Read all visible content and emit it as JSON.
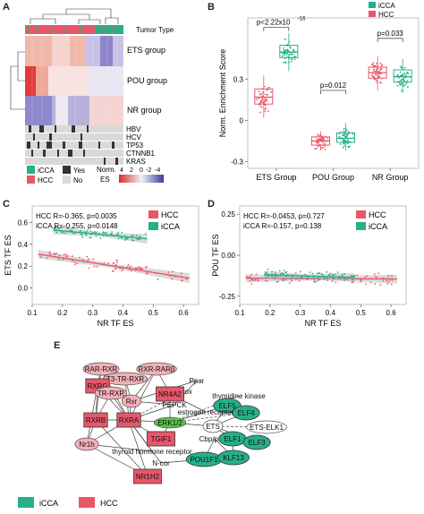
{
  "panels": {
    "a": "A",
    "b": "B",
    "c": "C",
    "d": "D",
    "e": "E"
  },
  "heatmap": {
    "row_labels": [
      "Tumor Type",
      "ETS group",
      "POU group",
      "NR group"
    ],
    "annot_labels": [
      "HBV",
      "HCV",
      "TP53",
      "CTNNB1",
      "KRAS"
    ],
    "legend_types": [
      "iCCA",
      "HCC"
    ],
    "legend_yesno": [
      "Yes",
      "No"
    ],
    "norm_label": "Norm.",
    "es_label": "ES",
    "norm_ticks": [
      "4",
      "2",
      "0",
      "-2",
      "-4"
    ],
    "colors": {
      "iCCA": "#26b08a",
      "HCC": "#e8566a",
      "high": "#d62b2b",
      "mid": "#f2f2f2",
      "low": "#3a3aa0",
      "yes": "#333333",
      "no": "#d9d9d9"
    }
  },
  "chart_data": [
    {
      "type": "box",
      "ylabel": "Norm. Enrichment Score",
      "categories": [
        "ETS Group",
        "POU Group",
        "NR Group"
      ],
      "ylim": [
        -0.35,
        0.75
      ],
      "yticks": [
        "0.3",
        "0",
        "-0.3"
      ],
      "legend": [
        "iCCA",
        "HCC"
      ],
      "pvalues": [
        "p<2.22x10",
        "-16",
        "p=0.012",
        "p=0.033"
      ],
      "series": [
        {
          "name": "HCC",
          "color": "#e8566a",
          "boxes": [
            {
              "q1": 0.12,
              "median": 0.17,
              "q3": 0.23,
              "min": 0.02,
              "max": 0.33
            },
            {
              "q1": -0.18,
              "median": -0.15,
              "q3": -0.12,
              "min": -0.22,
              "max": -0.08
            },
            {
              "q1": 0.31,
              "median": 0.35,
              "q3": 0.39,
              "min": 0.22,
              "max": 0.47
            }
          ]
        },
        {
          "name": "iCCA",
          "color": "#26b08a",
          "boxes": [
            {
              "q1": 0.46,
              "median": 0.5,
              "q3": 0.55,
              "min": 0.36,
              "max": 0.64
            },
            {
              "q1": -0.16,
              "median": -0.13,
              "q3": -0.09,
              "min": -0.22,
              "max": -0.02
            },
            {
              "q1": 0.28,
              "median": 0.32,
              "q3": 0.37,
              "min": 0.2,
              "max": 0.45
            }
          ]
        }
      ]
    },
    {
      "type": "scatter",
      "xlabel": "NR TF ES",
      "ylabel": "ETS TF ES",
      "xlim": [
        0.1,
        0.65
      ],
      "ylim": [
        -0.15,
        0.75
      ],
      "xticks": [
        "0.1",
        "0.2",
        "0.3",
        "0.4",
        "0.5",
        "0.6"
      ],
      "yticks": [
        "0.0",
        "0.2",
        "0.4",
        "0.6"
      ],
      "stats": [
        "HCC R=-0.365, p=0.0035",
        "iCCA R=-0.255, p=0.0148"
      ],
      "legend": [
        "HCC",
        "iCCA"
      ],
      "series": [
        {
          "name": "HCC",
          "color": "#e8566a",
          "fit": [
            [
              0.12,
              0.31
            ],
            [
              0.62,
              0.09
            ]
          ]
        },
        {
          "name": "iCCA",
          "color": "#26b08a",
          "fit": [
            [
              0.17,
              0.53
            ],
            [
              0.48,
              0.45
            ]
          ]
        }
      ]
    },
    {
      "type": "scatter",
      "xlabel": "NR TF ES",
      "ylabel": "POU TF ES",
      "xlim": [
        0.1,
        0.65
      ],
      "ylim": [
        -0.3,
        0.3
      ],
      "xticks": [
        "0.1",
        "0.2",
        "0.3",
        "0.4",
        "0.5",
        "0.6"
      ],
      "yticks": [
        "0.25",
        "0.00",
        "-0.25"
      ],
      "stats": [
        "HCC R=-0.0453, p=0.727",
        "iCCA R=-0.157, p=0.138"
      ],
      "legend": [
        "HCC",
        "iCCA"
      ],
      "series": [
        {
          "name": "HCC",
          "color": "#e8566a",
          "fit": [
            [
              0.12,
              -0.14
            ],
            [
              0.62,
              -0.145
            ]
          ]
        },
        {
          "name": "iCCA",
          "color": "#26b08a",
          "fit": [
            [
              0.18,
              -0.12
            ],
            [
              0.48,
              -0.135
            ]
          ]
        }
      ]
    }
  ],
  "network": {
    "nodes": [
      {
        "label": "RAR-RXR",
        "type": "hcc_ellipse"
      },
      {
        "label": "RXR-RARβ",
        "type": "hcc_ellipse"
      },
      {
        "label": "T3-TR-RXR",
        "type": "hcc_ellipse"
      },
      {
        "label": "Ppar",
        "type": "plain"
      },
      {
        "label": "Acox",
        "type": "plain"
      },
      {
        "label": "thymidine kinase",
        "type": "plain"
      },
      {
        "label": "RXRG",
        "type": "hcc_box"
      },
      {
        "label": "TR-RXR",
        "type": "hcc_ellipse"
      },
      {
        "label": "NR4A2",
        "type": "hcc_box"
      },
      {
        "label": "PEPCK",
        "type": "plain"
      },
      {
        "label": "ELF5",
        "type": "icca"
      },
      {
        "label": "ELF4",
        "type": "icca"
      },
      {
        "label": "Rxr",
        "type": "hcc_ellipse"
      },
      {
        "label": "estrogen receptor",
        "type": "plain"
      },
      {
        "label": "RXRB",
        "type": "hcc_box"
      },
      {
        "label": "RXRA",
        "type": "hcc_box"
      },
      {
        "label": "ERK1/2",
        "type": "green_small"
      },
      {
        "label": "ETS",
        "type": "white_ellipse"
      },
      {
        "label": "ETS-ELK1",
        "type": "white_ellipse"
      },
      {
        "label": "TGIF1",
        "type": "hcc_box"
      },
      {
        "label": "Nr1h",
        "type": "hcc_ellipse"
      },
      {
        "label": "thyroid hormone receptor",
        "type": "plain"
      },
      {
        "label": "Cbp/p300",
        "type": "plain"
      },
      {
        "label": "ELF1",
        "type": "icca"
      },
      {
        "label": "ELF3",
        "type": "icca"
      },
      {
        "label": "N-cor",
        "type": "plain"
      },
      {
        "label": "POU1F1",
        "type": "icca"
      },
      {
        "label": "KLF13",
        "type": "icca"
      },
      {
        "label": "NR1H2",
        "type": "hcc_box"
      }
    ],
    "legend": [
      "iCCA",
      "HCC"
    ]
  }
}
